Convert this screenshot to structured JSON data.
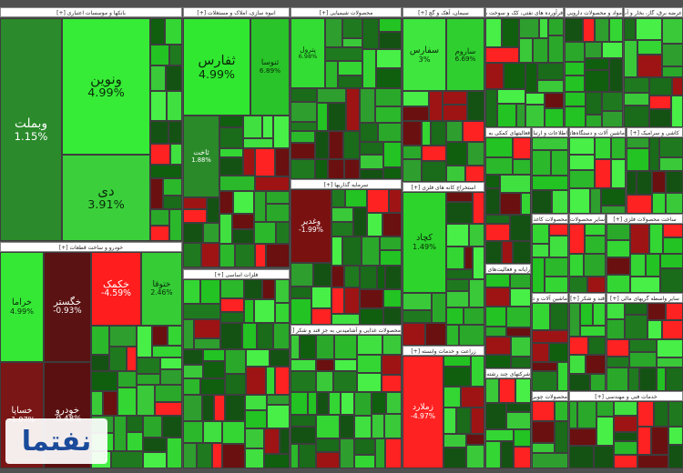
{
  "sectors": [
    {
      "title": "بانکها و موسسات اعتباری [+]",
      "tiles": [
        {
          "label": "وبملت",
          "change": "1.15%"
        },
        {
          "label": "ونوین",
          "change": "4.99%"
        },
        {
          "label": "دی",
          "change": "3.91%"
        }
      ]
    },
    {
      "title": "انبوه سازی، املاک و مستغلات [+]",
      "tiles": [
        {
          "label": "ثفارس",
          "change": "4.99%"
        },
        {
          "label": "ثنوسا",
          "change": "6.89%"
        },
        {
          "label": "ثاخت",
          "change": "1.88%"
        }
      ]
    },
    {
      "title": "محصولات شیمیایی [+]",
      "tiles": [
        {
          "label": "پترول",
          "change": "6.98%"
        }
      ]
    },
    {
      "title": "سیمان، آهک و گچ [+]",
      "tiles": [
        {
          "label": "سفارس",
          "change": "3%"
        },
        {
          "label": "ساروم",
          "change": "6.69%"
        }
      ]
    },
    {
      "title": "فرآورده های نفتی، کک و سوخت هسته ای [+]"
    },
    {
      "title": "مواد و محصولات دارویی [+]"
    },
    {
      "title": "عرضه برق، گاز، بخار و آب گرم [+]"
    },
    {
      "title": "خودرو و ساخت قطعات [+]",
      "tiles": [
        {
          "label": "خراما",
          "change": "4.99%"
        },
        {
          "label": "خگستر",
          "change": "-0.93%"
        },
        {
          "label": "خکمک",
          "change": "-4.59%"
        },
        {
          "label": "ختوقا",
          "change": "2.46%"
        },
        {
          "label": "خساپا",
          "change": "-1.07%"
        },
        {
          "label": "خودرو",
          "change": "-0.48%"
        }
      ]
    },
    {
      "title": "فلزات اساسی [+]"
    },
    {
      "title": "سرمایه گذاریها [+]",
      "tiles": [
        {
          "label": "وغدیر",
          "change": "-1.99%"
        }
      ]
    },
    {
      "title": "محصولات غذایی و آشامیدنی به جز قند و شکر [+]"
    },
    {
      "title": "استخراج کانه های فلزی [+]",
      "tiles": [
        {
          "label": "کچاد",
          "change": "1.49%"
        }
      ]
    },
    {
      "title": "زراعت و خدمات وابسته [+]",
      "tiles": [
        {
          "label": "زملارد",
          "change": "-4.97%"
        }
      ]
    },
    {
      "title": "فعالیتهای کمکی به نهادهای مالی واسط [+]"
    },
    {
      "title": "اطلاعات و ارتباطات [+]"
    },
    {
      "title": "ماشین آلات و دستگاه‌های برقی [+]"
    },
    {
      "title": "کاشی و سرامیک [+]"
    },
    {
      "title": "رایانه و فعالیت‌های وابسته به آن [+]"
    },
    {
      "title": "محصولات کاغذی [+]"
    },
    {
      "title": "سایر محصولات کانی غیرفلزی [+]"
    },
    {
      "title": "ساخت محصولات فلزی [+]"
    },
    {
      "title": "ماشین آلات و تجهیزات [+]"
    },
    {
      "title": "قند و شکر [+]"
    },
    {
      "title": "سایر واسطه گریهای مالی [+]"
    },
    {
      "title": "شرکتهای چند رشته ای صنعتی [+]"
    },
    {
      "title": "محصولات چوبی [+]"
    },
    {
      "title": "خدمات فنی و مهندسی [+]"
    }
  ],
  "watermark": "نفتما"
}
